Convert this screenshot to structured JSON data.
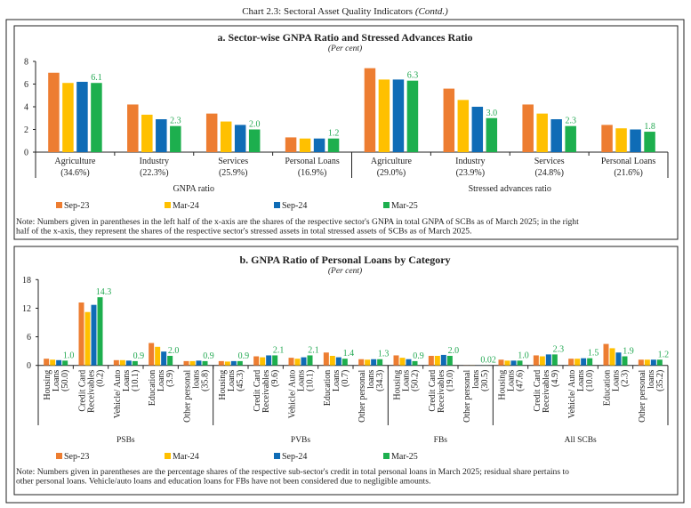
{
  "title": "Chart 2.3: Sectoral Asset Quality Indicators",
  "title_suffix": "(Contd.)",
  "colors": {
    "Sep-23": "#ED7D31",
    "Mar-24": "#FFC000",
    "Sep-24": "#0F6CB6",
    "Mar-25": "#1DAF4E",
    "label": "#23A852"
  },
  "chart_data": [
    {
      "type": "bar",
      "title": "a. Sector-wise GNPA Ratio and Stressed Advances Ratio",
      "subtitle": "(Per cent)",
      "ylim": [
        0,
        8
      ],
      "yticks": [
        "0",
        "2",
        "4",
        "6",
        "8"
      ],
      "categories": [
        {
          "name": "Agriculture",
          "share": "(34.6%)"
        },
        {
          "name": "Industry",
          "share": "(22.3%)"
        },
        {
          "name": "Services",
          "share": "(25.9%)"
        },
        {
          "name": "Personal Loans",
          "share": "(16.9%)"
        },
        {
          "name": "Agriculture",
          "share": "(29.0%)"
        },
        {
          "name": "Industry",
          "share": "(23.9%)"
        },
        {
          "name": "Services",
          "share": "(24.8%)"
        },
        {
          "name": "Personal Loans",
          "share": "(21.6%)"
        }
      ],
      "groups": [
        {
          "label": "GNPA ratio",
          "count": 4
        },
        {
          "label": "Stressed advances ratio",
          "count": 4
        }
      ],
      "series": [
        {
          "name": "Sep-23",
          "values": [
            7.0,
            4.2,
            3.4,
            1.3,
            7.4,
            5.6,
            4.2,
            2.4
          ]
        },
        {
          "name": "Mar-24",
          "values": [
            6.1,
            3.3,
            2.7,
            1.2,
            6.4,
            4.6,
            3.4,
            2.1
          ]
        },
        {
          "name": "Sep-24",
          "values": [
            6.2,
            2.9,
            2.4,
            1.2,
            6.4,
            4.0,
            2.9,
            2.0
          ]
        },
        {
          "name": "Mar-25",
          "values": [
            6.1,
            2.3,
            2.0,
            1.2,
            6.3,
            3.0,
            2.3,
            1.8
          ],
          "labels": [
            "6.1",
            "2.3",
            "2.0",
            "1.2",
            "6.3",
            "3.0",
            "2.3",
            "1.8"
          ]
        }
      ],
      "legend": "bottom",
      "note": "Note: Numbers given in parentheses in the left half of the x-axis are the shares of the respective sector's GNPA in total GNPA of SCBs as of March 2025; in the right half of the x-axis, they represent the shares of the respective sector's stressed assets in total stressed assets of SCBs as of March 2025."
    },
    {
      "type": "bar",
      "title": "b. GNPA Ratio of Personal Loans by Category",
      "subtitle": "(Per cent)",
      "ylim": [
        0,
        18
      ],
      "yticks": [
        "0",
        "6",
        "12",
        "18"
      ],
      "categories": [
        {
          "lines": [
            "Housing",
            "Loans",
            "(50.0)"
          ]
        },
        {
          "lines": [
            "Credit Card",
            "Receivables",
            "(0.2)"
          ]
        },
        {
          "lines": [
            "Vehicle/ Auto",
            "Loans",
            "(10.1)"
          ]
        },
        {
          "lines": [
            "Education",
            "Loans",
            "(3.9)"
          ]
        },
        {
          "lines": [
            "Other personal",
            "loans",
            "(35.8)"
          ]
        },
        {
          "lines": [
            "Housing",
            "Loans",
            "(45.3)"
          ]
        },
        {
          "lines": [
            "Credit Card",
            "Receivables",
            "(9.6)"
          ]
        },
        {
          "lines": [
            "Vehicle/ Auto",
            "Loans",
            "(10.1)"
          ]
        },
        {
          "lines": [
            "Education",
            "Loans",
            "(0.7)"
          ]
        },
        {
          "lines": [
            "Other personal",
            "loans",
            "(34.3)"
          ]
        },
        {
          "lines": [
            "Housing",
            "Loans",
            "(50.2)"
          ]
        },
        {
          "lines": [
            "Credit Card",
            "Receivables",
            "(19.0)"
          ]
        },
        {
          "lines": [
            "Other personal",
            "loans",
            "(30.5)"
          ]
        },
        {
          "lines": [
            "Housing",
            "Loans",
            "(47.6)"
          ]
        },
        {
          "lines": [
            "Credit Card",
            "Receivables",
            "(4.9)"
          ]
        },
        {
          "lines": [
            "Vehicle/ Auto",
            "Loans",
            "(10.0)"
          ]
        },
        {
          "lines": [
            "Education",
            "Loans",
            "(2.3)"
          ]
        },
        {
          "lines": [
            "Other personal",
            "loans",
            "(35.2)"
          ]
        }
      ],
      "groups": [
        {
          "label": "PSBs",
          "count": 5
        },
        {
          "label": "PVBs",
          "count": 5
        },
        {
          "label": "FBs",
          "count": 3
        },
        {
          "label": "All SCBs",
          "count": 5
        }
      ],
      "series": [
        {
          "name": "Sep-23",
          "values": [
            1.4,
            13.2,
            1.1,
            4.7,
            0.9,
            0.9,
            1.9,
            1.6,
            2.7,
            1.3,
            2.1,
            2.0,
            0.02,
            1.2,
            2.1,
            1.4,
            4.5,
            1.2
          ]
        },
        {
          "name": "Mar-24",
          "values": [
            1.2,
            11.2,
            1.1,
            3.9,
            0.9,
            0.8,
            1.7,
            1.4,
            2.0,
            1.2,
            1.6,
            2.0,
            0.02,
            1.0,
            1.9,
            1.4,
            3.6,
            1.2
          ]
        },
        {
          "name": "Sep-24",
          "values": [
            1.1,
            12.7,
            1.0,
            2.9,
            1.0,
            0.9,
            2.1,
            1.7,
            1.7,
            1.3,
            1.3,
            2.2,
            0.02,
            1.0,
            2.3,
            1.5,
            2.7,
            1.2
          ]
        },
        {
          "name": "Mar-25",
          "values": [
            1.0,
            14.3,
            0.9,
            2.0,
            0.9,
            0.9,
            2.1,
            2.1,
            1.4,
            1.3,
            0.9,
            2.0,
            0.02,
            1.0,
            2.3,
            1.5,
            1.9,
            1.2
          ],
          "labels": [
            "1.0",
            "14.3",
            "0.9",
            "2.0",
            "0.9",
            "0.9",
            "2.1",
            "2.1",
            "1.4",
            "1.3",
            "0.9",
            "2.0",
            "0.02",
            "1.0",
            "2.3",
            "1.5",
            "1.9",
            "1.2"
          ]
        }
      ],
      "legend": "bottom",
      "note": "Note: Numbers given in parentheses are the percentage shares of the respective sub-sector's credit in total personal loans in March 2025; residual share pertains to other personal loans. Vehicle/auto loans and education loans for FBs have not been considered due to negligible amounts."
    }
  ]
}
